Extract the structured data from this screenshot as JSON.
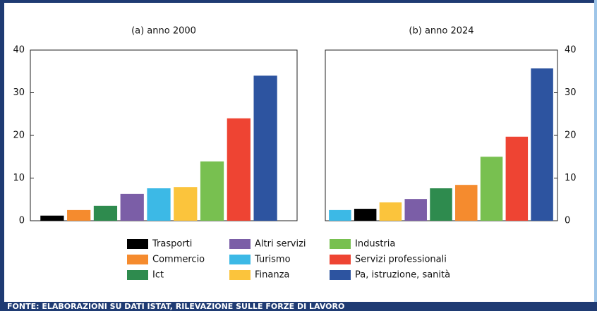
{
  "chart_data": [
    {
      "type": "bar",
      "title": "(a) anno 2000",
      "ylim": [
        0,
        40
      ],
      "yticks": [
        0,
        10,
        20,
        30,
        40
      ],
      "y_axis_side": "left",
      "series": [
        {
          "name": "Trasporti",
          "color": "#000000",
          "values": [
            1.2
          ]
        },
        {
          "name": "Commercio",
          "color": "#f58b2e",
          "values": [
            2.5
          ]
        },
        {
          "name": "Ict",
          "color": "#2e8b4e",
          "values": [
            3.5
          ]
        },
        {
          "name": "Altri servizi",
          "color": "#7b5ea7",
          "values": [
            6.3
          ]
        },
        {
          "name": "Turismo",
          "color": "#3cb9e6",
          "values": [
            7.6
          ]
        },
        {
          "name": "Finanza",
          "color": "#fbc43c",
          "values": [
            7.9
          ]
        },
        {
          "name": "Industria",
          "color": "#78c050",
          "values": [
            13.9
          ]
        },
        {
          "name": "Servizi professionali",
          "color": "#ee4433",
          "values": [
            24
          ]
        },
        {
          "name": "Pa, istruzione, sanità",
          "color": "#2d54a0",
          "values": [
            34
          ]
        }
      ]
    },
    {
      "type": "bar",
      "title": "(b) anno 2024",
      "ylim": [
        0,
        40
      ],
      "yticks": [
        0,
        10,
        20,
        30,
        40
      ],
      "y_axis_side": "right",
      "series": [
        {
          "name": "Turismo",
          "color": "#3cb9e6",
          "values": [
            2.5
          ]
        },
        {
          "name": "Trasporti",
          "color": "#000000",
          "values": [
            2.8
          ]
        },
        {
          "name": "Finanza",
          "color": "#fbc43c",
          "values": [
            4.3
          ]
        },
        {
          "name": "Altri servizi",
          "color": "#7b5ea7",
          "values": [
            5.1
          ]
        },
        {
          "name": "Ict",
          "color": "#2e8b4e",
          "values": [
            7.6
          ]
        },
        {
          "name": "Commercio",
          "color": "#f58b2e",
          "values": [
            8.4
          ]
        },
        {
          "name": "Industria",
          "color": "#78c050",
          "values": [
            15
          ]
        },
        {
          "name": "Servizi professionali",
          "color": "#ee4433",
          "values": [
            19.7
          ]
        },
        {
          "name": "Pa, istruzione, sanità",
          "color": "#2d54a0",
          "values": [
            35.7
          ]
        }
      ]
    }
  ],
  "source": "FONTE: ELABORAZIONI SU DATI ISTAT, RILEVAZIONE SULLE FORZE DI LAVORO"
}
